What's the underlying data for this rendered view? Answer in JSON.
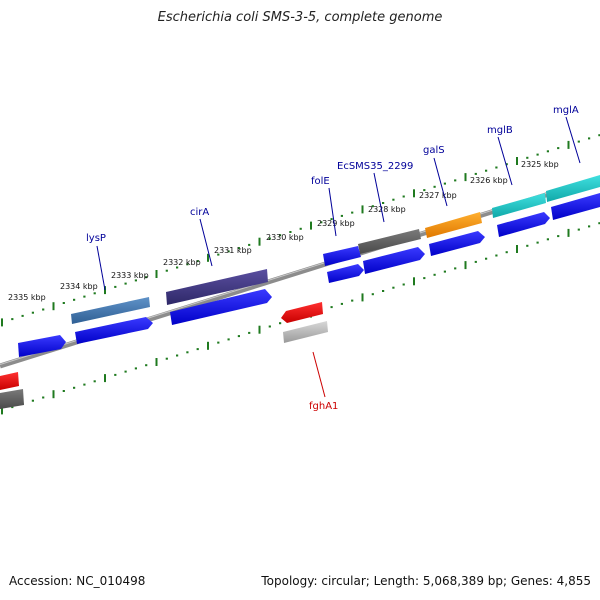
{
  "title": "Escherichia coli SMS-3-5, complete genome",
  "footer": {
    "accession": "Accession: NC_010498",
    "summary": "Topology: circular; Length: 5,068,389 bp; Genes: 4,855"
  },
  "colors": {
    "backbone": "#8c8c8c",
    "tick": "#1f7a1f",
    "cds_default": "#0000ee",
    "label_forward": "#000099",
    "label_reverse": "#cc0000",
    "kbp_text": "#111111"
  },
  "kbp_labels": [
    "2335 kbp",
    "2334 kbp",
    "2333 kbp",
    "2332 kbp",
    "2331 kbp",
    "2330 kbp",
    "2329 kbp",
    "2328 kbp",
    "2327 kbp",
    "2326 kbp",
    "2325 kbp"
  ],
  "gene_labels": [
    {
      "name": "lysP",
      "strand": "forward"
    },
    {
      "name": "cirA",
      "strand": "forward"
    },
    {
      "name": "folE",
      "strand": "forward"
    },
    {
      "name": "EcSMS35_2299",
      "strand": "forward"
    },
    {
      "name": "galS",
      "strand": "forward"
    },
    {
      "name": "mglB",
      "strand": "forward"
    },
    {
      "name": "mglA",
      "strand": "forward"
    },
    {
      "name": "fghA1",
      "strand": "reverse"
    }
  ]
}
